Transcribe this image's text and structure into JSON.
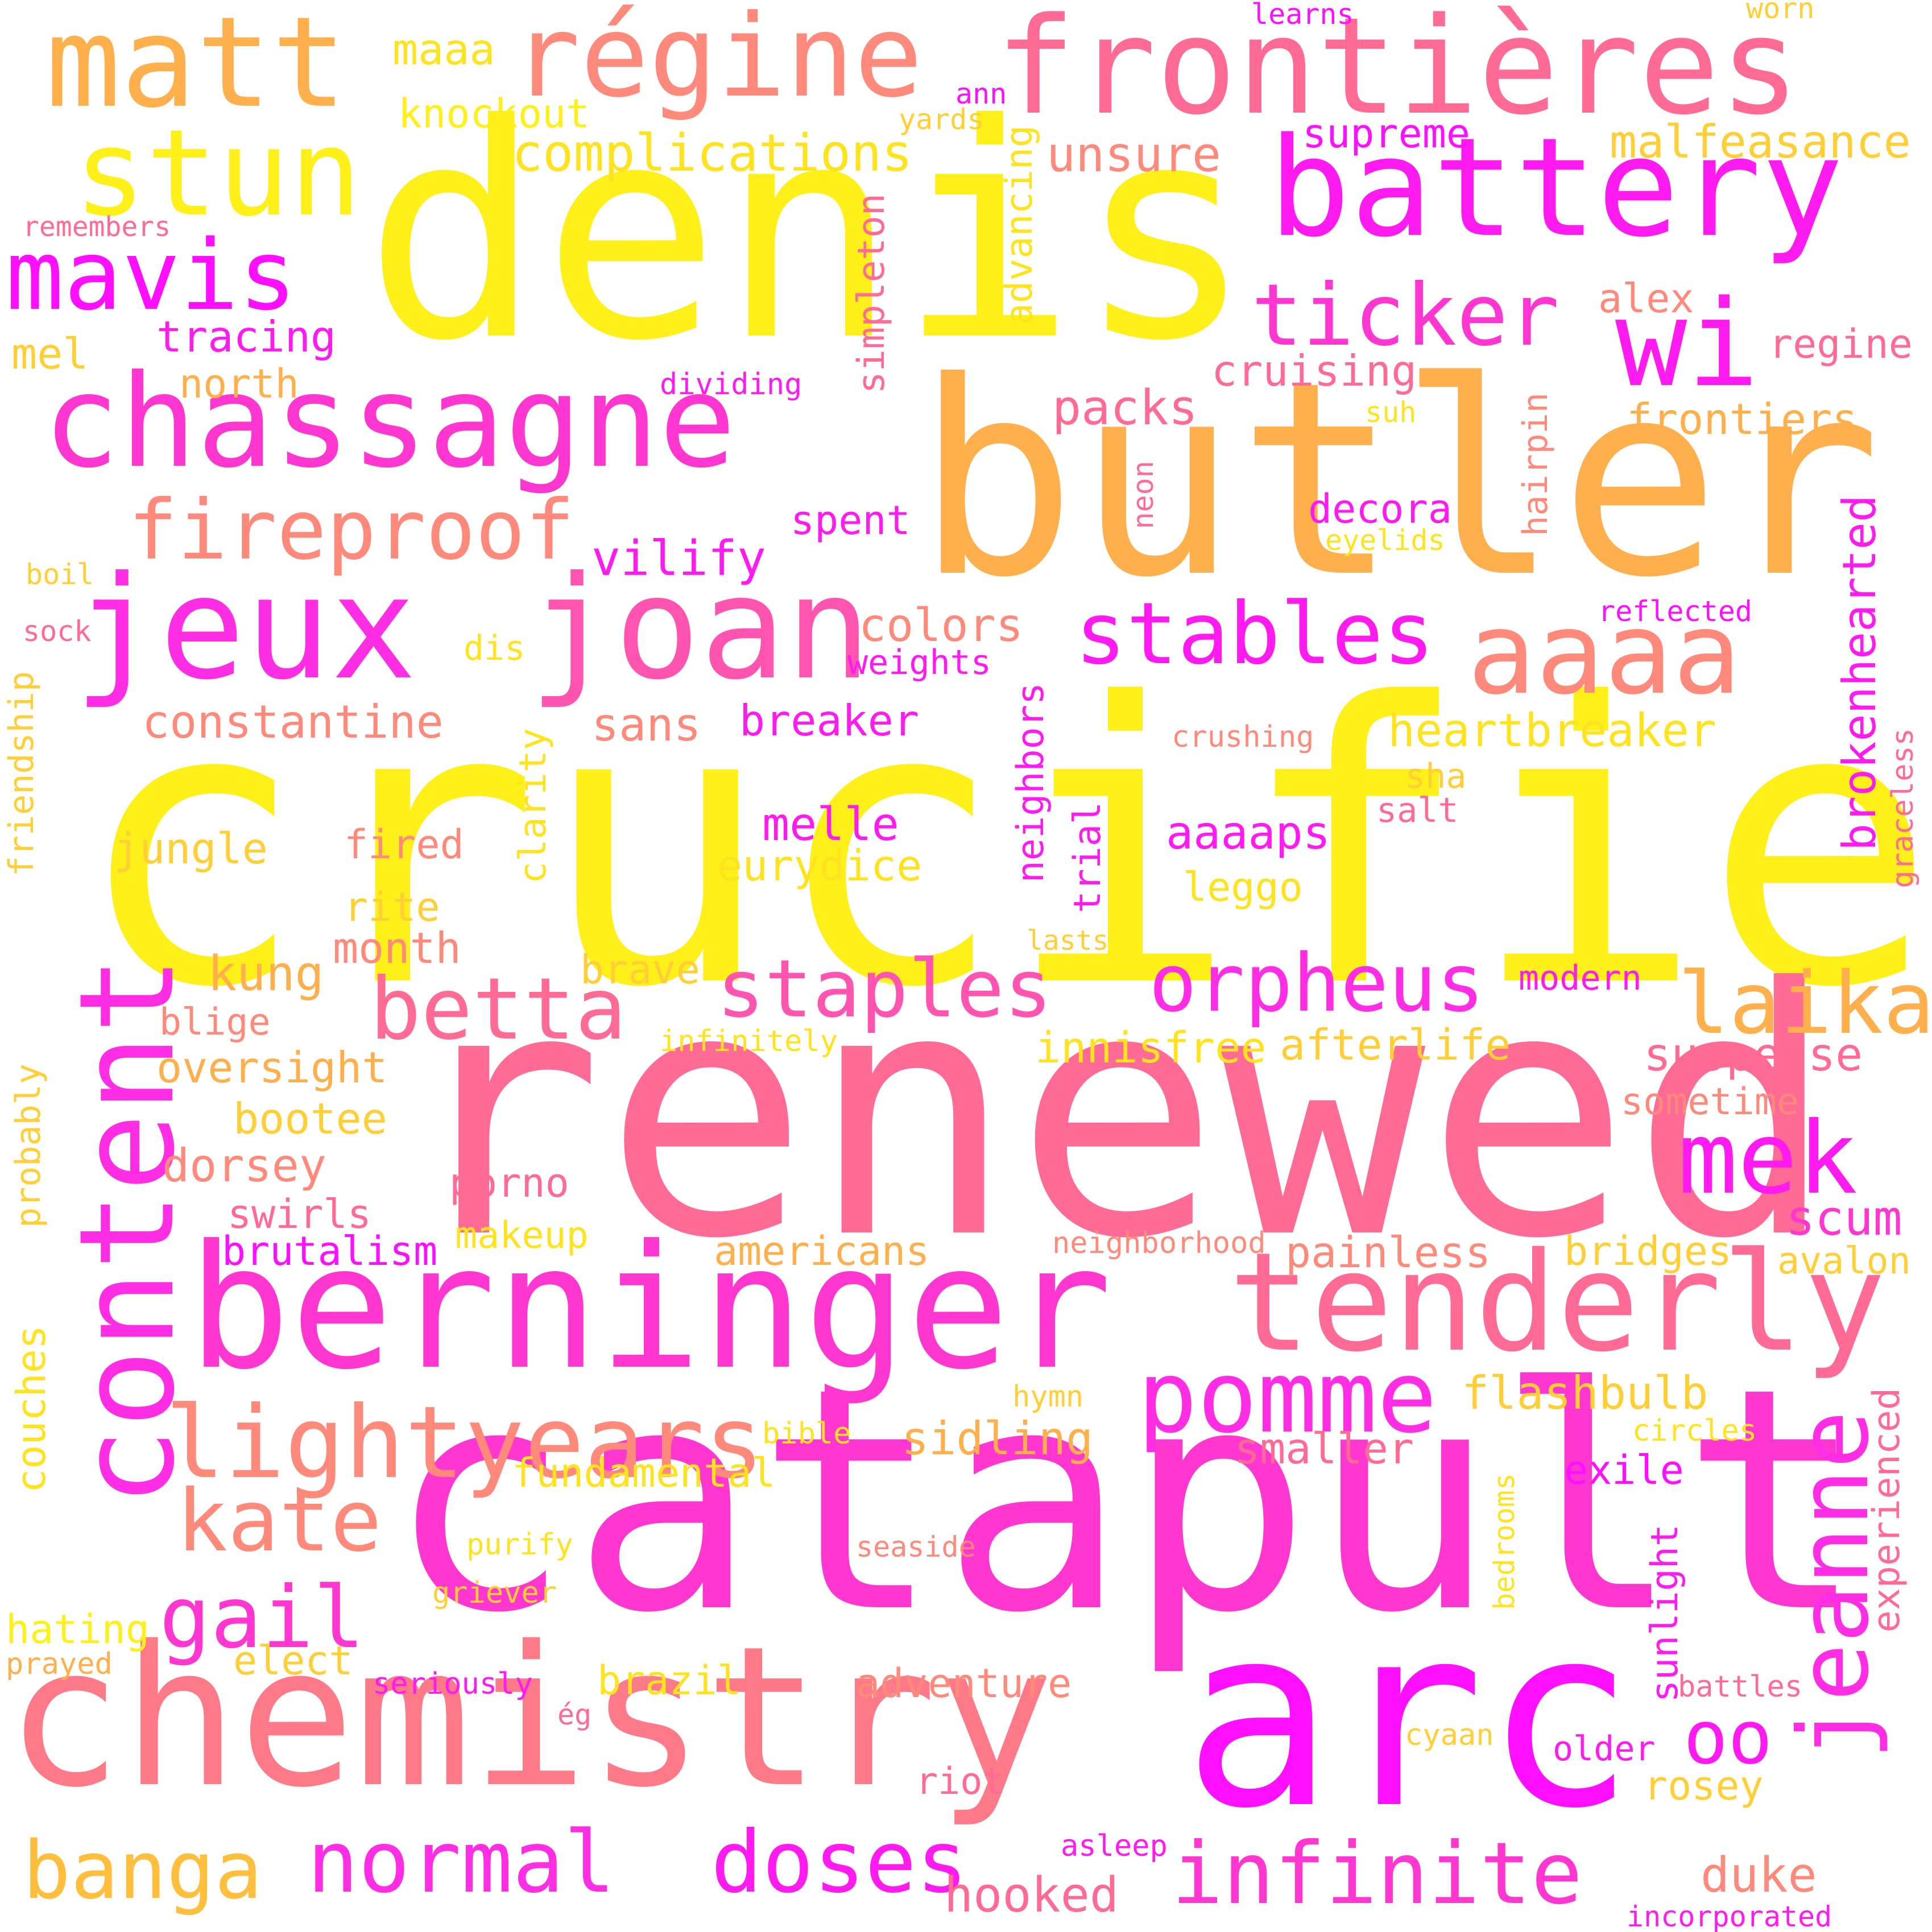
{
  "words": [
    {
      "text": "crucified",
      "color": "#fff01a",
      "orientation": "horizontal"
    },
    {
      "text": "renewed",
      "color": "#ff6b94",
      "orientation": "horizontal"
    },
    {
      "text": "catapult",
      "color": "#ff36d0",
      "orientation": "horizontal"
    },
    {
      "text": "denis",
      "color": "#fff01a",
      "orientation": "horizontal"
    },
    {
      "text": "butler",
      "color": "#ffb04c",
      "orientation": "horizontal"
    },
    {
      "text": "arc",
      "color": "#ff0fff",
      "orientation": "horizontal"
    },
    {
      "text": "chemistry",
      "color": "#ff7a88",
      "orientation": "horizontal"
    },
    {
      "text": "berninger",
      "color": "#ff36d0",
      "orientation": "horizontal"
    },
    {
      "text": "frontières",
      "color": "#ff6b94",
      "orientation": "horizontal"
    },
    {
      "text": "chassagne",
      "color": "#ff36d0",
      "orientation": "horizontal"
    },
    {
      "text": "jeux",
      "color": "#ff2ee4",
      "orientation": "horizontal"
    },
    {
      "text": "joan",
      "color": "#ff55b0",
      "orientation": "horizontal"
    },
    {
      "text": "battery",
      "color": "#ff1af0",
      "orientation": "horizontal"
    },
    {
      "text": "matt",
      "color": "#ffb04c",
      "orientation": "horizontal"
    },
    {
      "text": "régine",
      "color": "#ff8a7c",
      "orientation": "horizontal"
    },
    {
      "text": "stun",
      "color": "#fff01a",
      "orientation": "horizontal"
    },
    {
      "text": "wi",
      "color": "#ff1af0",
      "orientation": "horizontal"
    },
    {
      "text": "tenderly",
      "color": "#ff6b94",
      "orientation": "horizontal"
    },
    {
      "text": "content",
      "color": "#ff2ee4",
      "orientation": "vertical"
    },
    {
      "text": "jeanne",
      "color": "#ff2ee4",
      "orientation": "vertical"
    },
    {
      "text": "mavis",
      "color": "#ff0fff",
      "orientation": "horizontal"
    },
    {
      "text": "aaaa",
      "color": "#ff8a7c",
      "orientation": "horizontal"
    },
    {
      "text": "lightyears",
      "color": "#ff8a7c",
      "orientation": "horizontal"
    },
    {
      "text": "pomme",
      "color": "#ff2ee4",
      "orientation": "horizontal"
    },
    {
      "text": "fireproof",
      "color": "#ff8a7c",
      "orientation": "horizontal"
    },
    {
      "text": "ticker",
      "color": "#ff36d0",
      "orientation": "horizontal"
    },
    {
      "text": "stables",
      "color": "#ff1af0",
      "orientation": "horizontal"
    },
    {
      "text": "staples",
      "color": "#ff55b0",
      "orientation": "horizontal"
    },
    {
      "text": "orpheus",
      "color": "#ff2ee4",
      "orientation": "horizontal"
    },
    {
      "text": "betta",
      "color": "#ff6b94",
      "orientation": "horizontal"
    },
    {
      "text": "mek",
      "color": "#ff1af0",
      "orientation": "horizontal"
    },
    {
      "text": "laika",
      "color": "#ffb04c",
      "orientation": "horizontal"
    },
    {
      "text": "kate",
      "color": "#ff8a7c",
      "orientation": "horizontal"
    },
    {
      "text": "gail",
      "color": "#ff36d0",
      "orientation": "horizontal"
    },
    {
      "text": "normal",
      "color": "#ff2ee4",
      "orientation": "horizontal"
    },
    {
      "text": "doses",
      "color": "#ff1af0",
      "orientation": "horizontal"
    },
    {
      "text": "infinite",
      "color": "#ff36d0",
      "orientation": "horizontal"
    },
    {
      "text": "banga",
      "color": "#ffbf3c",
      "orientation": "horizontal"
    },
    {
      "text": "oo",
      "color": "#ff1af0",
      "orientation": "horizontal"
    },
    {
      "text": "complications",
      "color": "#ffe31f",
      "orientation": "horizontal"
    },
    {
      "text": "unsure",
      "color": "#ff8a7c",
      "orientation": "horizontal"
    },
    {
      "text": "supreme",
      "color": "#ff0fff",
      "orientation": "horizontal"
    },
    {
      "text": "malfeasance",
      "color": "#ffcf35",
      "orientation": "horizontal"
    },
    {
      "text": "knockout",
      "color": "#fff01a",
      "orientation": "horizontal"
    },
    {
      "text": "maaa",
      "color": "#ffe31f",
      "orientation": "horizontal"
    },
    {
      "text": "learns",
      "color": "#ff0fff",
      "orientation": "horizontal"
    },
    {
      "text": "worn",
      "color": "#ffcf35",
      "orientation": "horizontal"
    },
    {
      "text": "ann",
      "color": "#ff0fff",
      "orientation": "horizontal"
    },
    {
      "text": "yards",
      "color": "#ffcf35",
      "orientation": "horizontal"
    },
    {
      "text": "remembers",
      "color": "#ff6b94",
      "orientation": "horizontal"
    },
    {
      "text": "tracing",
      "color": "#ff1af0",
      "orientation": "horizontal"
    },
    {
      "text": "mel",
      "color": "#ffcf35",
      "orientation": "horizontal"
    },
    {
      "text": "north",
      "color": "#ffb04c",
      "orientation": "horizontal"
    },
    {
      "text": "dividing",
      "color": "#ff1af0",
      "orientation": "horizontal"
    },
    {
      "text": "simpleton",
      "color": "#ff6b94",
      "orientation": "vertical"
    },
    {
      "text": "advancing",
      "color": "#ffe31f",
      "orientation": "vertical"
    },
    {
      "text": "alex",
      "color": "#ff8a7c",
      "orientation": "horizontal"
    },
    {
      "text": "regine",
      "color": "#ff6b94",
      "orientation": "horizontal"
    },
    {
      "text": "cruising",
      "color": "#ff6b94",
      "orientation": "horizontal"
    },
    {
      "text": "packs",
      "color": "#ff6b94",
      "orientation": "horizontal"
    },
    {
      "text": "suh",
      "color": "#ffe31f",
      "orientation": "horizontal"
    },
    {
      "text": "frontiers",
      "color": "#ffb04c",
      "orientation": "horizontal"
    },
    {
      "text": "hairpin",
      "color": "#ff8a7c",
      "orientation": "vertical"
    },
    {
      "text": "neon",
      "color": "#ff6b94",
      "orientation": "vertical"
    },
    {
      "text": "decora",
      "color": "#ff1af0",
      "orientation": "horizontal"
    },
    {
      "text": "eyelids",
      "color": "#ffe31f",
      "orientation": "horizontal"
    },
    {
      "text": "spent",
      "color": "#ff1af0",
      "orientation": "horizontal"
    },
    {
      "text": "vilify",
      "color": "#ff1af0",
      "orientation": "horizontal"
    },
    {
      "text": "boil",
      "color": "#ffcf35",
      "orientation": "horizontal"
    },
    {
      "text": "sock",
      "color": "#ff6b94",
      "orientation": "horizontal"
    },
    {
      "text": "brokenhearted",
      "color": "#ff1af0",
      "orientation": "vertical"
    },
    {
      "text": "reflected",
      "color": "#ff0fff",
      "orientation": "horizontal"
    },
    {
      "text": "colors",
      "color": "#ff8a7c",
      "orientation": "horizontal"
    },
    {
      "text": "weights",
      "color": "#ff1af0",
      "orientation": "horizontal"
    },
    {
      "text": "dis",
      "color": "#ffe31f",
      "orientation": "horizontal"
    },
    {
      "text": "constantine",
      "color": "#ff8a7c",
      "orientation": "horizontal"
    },
    {
      "text": "sans",
      "color": "#ff8a7c",
      "orientation": "horizontal"
    },
    {
      "text": "breaker",
      "color": "#ff1af0",
      "orientation": "horizontal"
    },
    {
      "text": "heartbreaker",
      "color": "#ffe31f",
      "orientation": "horizontal"
    },
    {
      "text": "crushing",
      "color": "#ff8a7c",
      "orientation": "horizontal"
    },
    {
      "text": "friendship",
      "color": "#ffcf35",
      "orientation": "vertical"
    },
    {
      "text": "clarity",
      "color": "#ffe31f",
      "orientation": "vertical"
    },
    {
      "text": "neighbors",
      "color": "#ff1af0",
      "orientation": "vertical"
    },
    {
      "text": "sha",
      "color": "#ffcf35",
      "orientation": "horizontal"
    },
    {
      "text": "salt",
      "color": "#ff6b94",
      "orientation": "horizontal"
    },
    {
      "text": "graceless",
      "color": "#ff6b94",
      "orientation": "vertical"
    },
    {
      "text": "melle",
      "color": "#ff1af0",
      "orientation": "horizontal"
    },
    {
      "text": "aaaaps",
      "color": "#ff1af0",
      "orientation": "horizontal"
    },
    {
      "text": "jungle",
      "color": "#ffcf35",
      "orientation": "horizontal"
    },
    {
      "text": "fired",
      "color": "#ff8a7c",
      "orientation": "horizontal"
    },
    {
      "text": "eurydice",
      "color": "#ffe31f",
      "orientation": "horizontal"
    },
    {
      "text": "trial",
      "color": "#ff1af0",
      "orientation": "vertical"
    },
    {
      "text": "leggo",
      "color": "#ffe31f",
      "orientation": "horizontal"
    },
    {
      "text": "rite",
      "color": "#ffcf35",
      "orientation": "horizontal"
    },
    {
      "text": "month",
      "color": "#ff8a7c",
      "orientation": "horizontal"
    },
    {
      "text": "lasts",
      "color": "#ffcf35",
      "orientation": "horizontal"
    },
    {
      "text": "kung",
      "color": "#ffb04c",
      "orientation": "horizontal"
    },
    {
      "text": "brave",
      "color": "#ffcf35",
      "orientation": "horizontal"
    },
    {
      "text": "modern",
      "color": "#ff1af0",
      "orientation": "horizontal"
    },
    {
      "text": "blige",
      "color": "#ff8a7c",
      "orientation": "horizontal"
    },
    {
      "text": "infinitely",
      "color": "#ffe31f",
      "orientation": "horizontal"
    },
    {
      "text": "innisfree",
      "color": "#ffe31f",
      "orientation": "horizontal"
    },
    {
      "text": "afterlife",
      "color": "#ffcf35",
      "orientation": "horizontal"
    },
    {
      "text": "suspense",
      "color": "#ff6b94",
      "orientation": "horizontal"
    },
    {
      "text": "oversight",
      "color": "#ffb04c",
      "orientation": "horizontal"
    },
    {
      "text": "sometime",
      "color": "#ff8a7c",
      "orientation": "horizontal"
    },
    {
      "text": "bootee",
      "color": "#ffcf35",
      "orientation": "horizontal"
    },
    {
      "text": "probably",
      "color": "#ffcf35",
      "orientation": "vertical"
    },
    {
      "text": "dorsey",
      "color": "#ff8a7c",
      "orientation": "horizontal"
    },
    {
      "text": "porno",
      "color": "#ff6b94",
      "orientation": "horizontal"
    },
    {
      "text": "scum",
      "color": "#ff36d0",
      "orientation": "horizontal"
    },
    {
      "text": "swirls",
      "color": "#ff6b94",
      "orientation": "horizontal"
    },
    {
      "text": "makeup",
      "color": "#ffe31f",
      "orientation": "horizontal"
    },
    {
      "text": "neighborhood",
      "color": "#ff8a7c",
      "orientation": "horizontal"
    },
    {
      "text": "brutalism",
      "color": "#ff0fff",
      "orientation": "horizontal"
    },
    {
      "text": "americans",
      "color": "#ffb04c",
      "orientation": "horizontal"
    },
    {
      "text": "painless",
      "color": "#ff8a7c",
      "orientation": "horizontal"
    },
    {
      "text": "bridges",
      "color": "#ffcf35",
      "orientation": "horizontal"
    },
    {
      "text": "avalon",
      "color": "#ffcf35",
      "orientation": "horizontal"
    },
    {
      "text": "couches",
      "color": "#ffe31f",
      "orientation": "vertical"
    },
    {
      "text": "hymn",
      "color": "#ffcf35",
      "orientation": "horizontal"
    },
    {
      "text": "flashbulb",
      "color": "#ffcf35",
      "orientation": "horizontal"
    },
    {
      "text": "experienced",
      "color": "#ff6b94",
      "orientation": "vertical"
    },
    {
      "text": "bible",
      "color": "#ffe31f",
      "orientation": "horizontal"
    },
    {
      "text": "sidling",
      "color": "#ffb04c",
      "orientation": "horizontal"
    },
    {
      "text": "smaller",
      "color": "#ff6b94",
      "orientation": "horizontal"
    },
    {
      "text": "circles",
      "color": "#ffe31f",
      "orientation": "horizontal"
    },
    {
      "text": "fundamental",
      "color": "#ffe31f",
      "orientation": "horizontal"
    },
    {
      "text": "exile",
      "color": "#ff0fff",
      "orientation": "horizontal"
    },
    {
      "text": "bedrooms",
      "color": "#ffe31f",
      "orientation": "vertical"
    },
    {
      "text": "purify",
      "color": "#ffe31f",
      "orientation": "horizontal"
    },
    {
      "text": "seaside",
      "color": "#ff8a7c",
      "orientation": "horizontal"
    },
    {
      "text": "sunlight",
      "color": "#ff1af0",
      "orientation": "vertical"
    },
    {
      "text": "griever",
      "color": "#ffcf35",
      "orientation": "horizontal"
    },
    {
      "text": "hating",
      "color": "#fff01a",
      "orientation": "horizontal"
    },
    {
      "text": "elect",
      "color": "#ffcf35",
      "orientation": "horizontal"
    },
    {
      "text": "prayed",
      "color": "#ffb04c",
      "orientation": "horizontal"
    },
    {
      "text": "seriously",
      "color": "#ff1af0",
      "orientation": "horizontal"
    },
    {
      "text": "brazil",
      "color": "#ffe31f",
      "orientation": "horizontal"
    },
    {
      "text": "adventure",
      "color": "#ff8a7c",
      "orientation": "horizontal"
    },
    {
      "text": "battles",
      "color": "#ff6b94",
      "orientation": "horizontal"
    },
    {
      "text": "ég",
      "color": "#ff6b94",
      "orientation": "horizontal"
    },
    {
      "text": "cyaan",
      "color": "#ffcf35",
      "orientation": "horizontal"
    },
    {
      "text": "older",
      "color": "#ff1af0",
      "orientation": "horizontal"
    },
    {
      "text": "riot",
      "color": "#ff6b94",
      "orientation": "horizontal"
    },
    {
      "text": "rosey",
      "color": "#ffcf35",
      "orientation": "horizontal"
    },
    {
      "text": "asleep",
      "color": "#ff1af0",
      "orientation": "horizontal"
    },
    {
      "text": "duke",
      "color": "#ff8a7c",
      "orientation": "horizontal"
    },
    {
      "text": "hooked",
      "color": "#ff6b94",
      "orientation": "horizontal"
    },
    {
      "text": "incorporated",
      "color": "#ff1af0",
      "orientation": "horizontal"
    }
  ]
}
